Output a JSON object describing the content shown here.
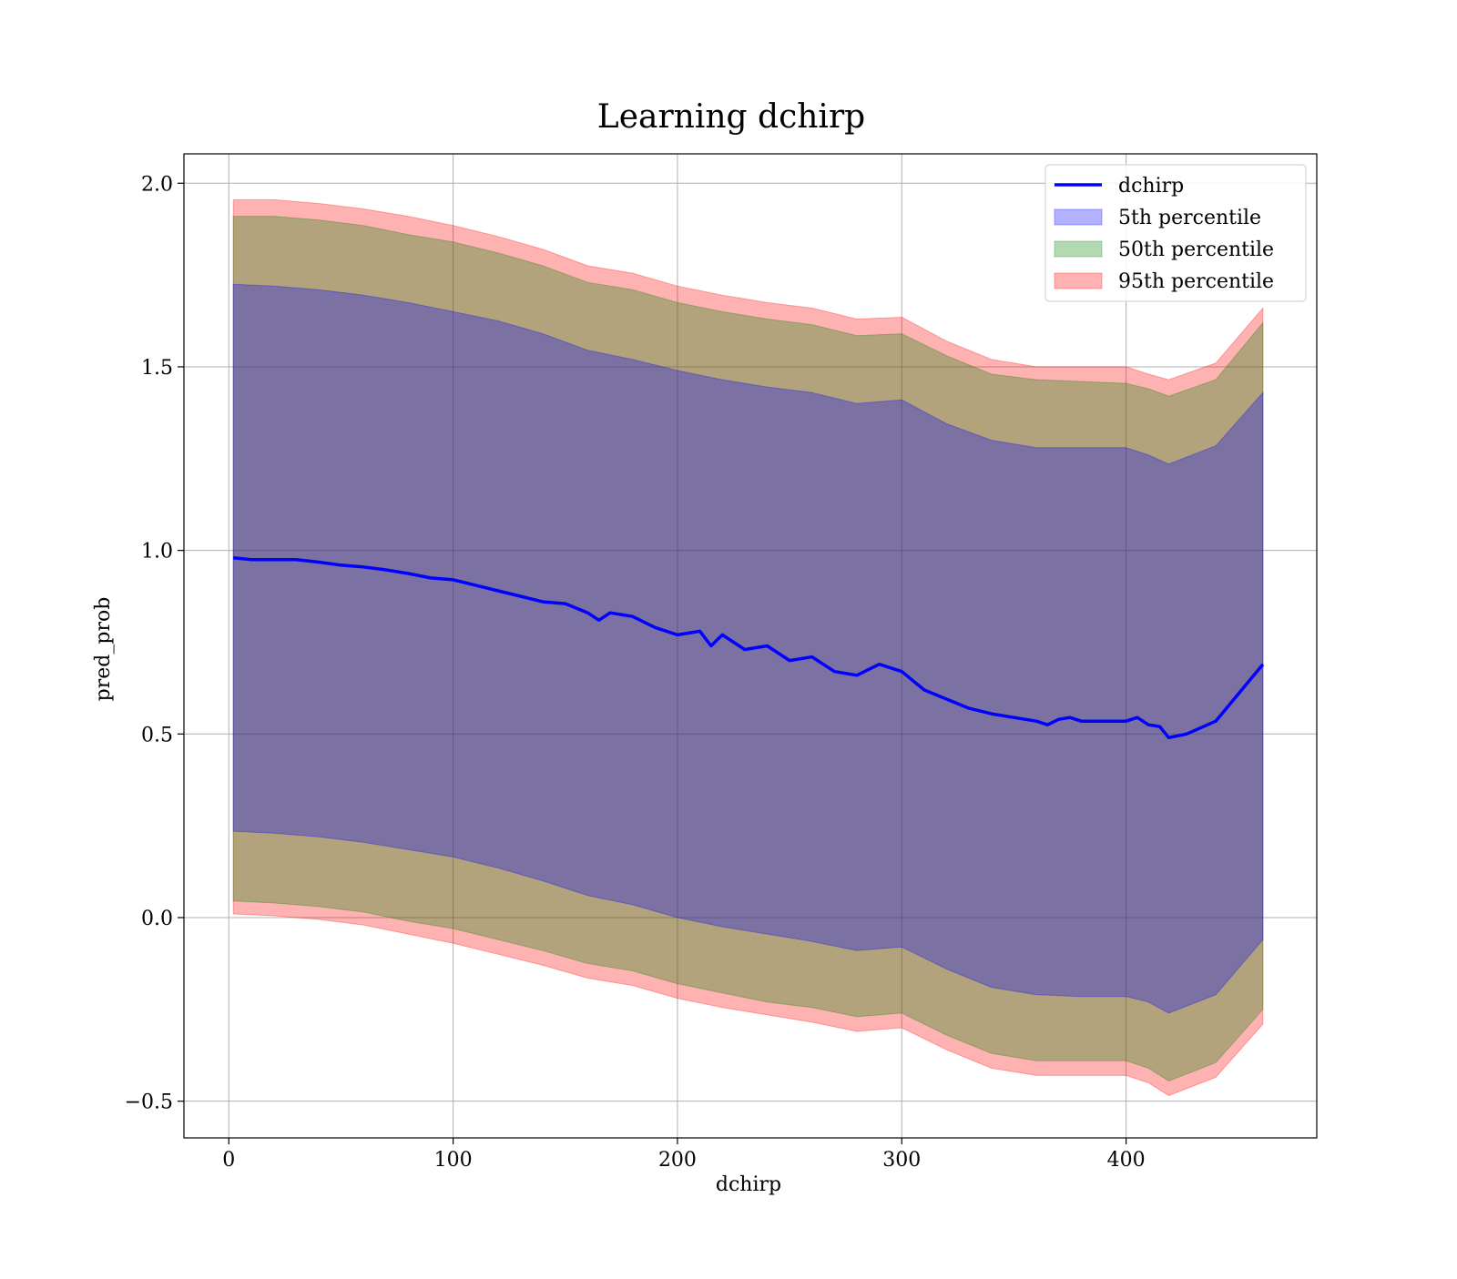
{
  "chart_data": {
    "type": "area",
    "title": "Learning dchirp",
    "xlabel": "dchirp",
    "ylabel": "pred_prob",
    "xlim": [
      -20,
      485
    ],
    "ylim": [
      -0.6,
      2.08
    ],
    "xticks": [
      0,
      100,
      200,
      300,
      400
    ],
    "yticks": [
      -0.5,
      0.0,
      0.5,
      1.0,
      1.5,
      2.0
    ],
    "xtick_labels": [
      "0",
      "100",
      "200",
      "300",
      "400"
    ],
    "ytick_labels": [
      "−0.5",
      "0.0",
      "0.5",
      "1.0",
      "1.5",
      "2.0"
    ],
    "grid": true,
    "legend_position": "top-right",
    "legend": [
      {
        "label": "dchirp",
        "kind": "line",
        "color": "#0000ff"
      },
      {
        "label": "5th percentile",
        "kind": "band",
        "color": "#0000ff"
      },
      {
        "label": "50th percentile",
        "kind": "band",
        "color": "#008000"
      },
      {
        "label": "95th percentile",
        "kind": "band",
        "color": "#ff0000"
      }
    ],
    "line": {
      "name": "dchirp",
      "color": "#0000ff",
      "x": [
        2,
        10,
        20,
        30,
        40,
        50,
        60,
        70,
        80,
        90,
        100,
        110,
        120,
        130,
        140,
        150,
        160,
        165,
        170,
        180,
        190,
        200,
        210,
        215,
        220,
        230,
        240,
        250,
        260,
        270,
        280,
        290,
        300,
        310,
        320,
        330,
        340,
        350,
        360,
        365,
        370,
        375,
        380,
        390,
        400,
        405,
        410,
        415,
        419,
        427,
        440,
        461
      ],
      "y": [
        0.98,
        0.975,
        0.975,
        0.975,
        0.968,
        0.96,
        0.955,
        0.947,
        0.937,
        0.925,
        0.92,
        0.905,
        0.89,
        0.875,
        0.86,
        0.855,
        0.83,
        0.81,
        0.83,
        0.82,
        0.79,
        0.77,
        0.78,
        0.74,
        0.77,
        0.73,
        0.74,
        0.7,
        0.71,
        0.67,
        0.66,
        0.69,
        0.67,
        0.62,
        0.595,
        0.57,
        0.555,
        0.545,
        0.535,
        0.525,
        0.54,
        0.545,
        0.535,
        0.535,
        0.535,
        0.545,
        0.525,
        0.52,
        0.49,
        0.5,
        0.535,
        0.69
      ]
    },
    "bands": [
      {
        "name": "95th percentile",
        "color": "#ff0000",
        "x": [
          2,
          20,
          40,
          60,
          80,
          100,
          120,
          140,
          160,
          180,
          200,
          220,
          240,
          260,
          280,
          300,
          320,
          340,
          360,
          380,
          400,
          410,
          419,
          440,
          461
        ],
        "upper": [
          1.955,
          1.955,
          1.945,
          1.93,
          1.91,
          1.885,
          1.855,
          1.82,
          1.775,
          1.755,
          1.72,
          1.695,
          1.675,
          1.66,
          1.63,
          1.635,
          1.57,
          1.52,
          1.5,
          1.5,
          1.5,
          1.48,
          1.465,
          1.51,
          1.66
        ],
        "lower": [
          0.01,
          0.005,
          -0.005,
          -0.02,
          -0.045,
          -0.07,
          -0.1,
          -0.13,
          -0.165,
          -0.185,
          -0.22,
          -0.245,
          -0.265,
          -0.285,
          -0.31,
          -0.3,
          -0.36,
          -0.41,
          -0.43,
          -0.43,
          -0.43,
          -0.45,
          -0.485,
          -0.435,
          -0.29
        ]
      },
      {
        "name": "50th percentile",
        "color": "#008000",
        "x": [
          2,
          20,
          40,
          60,
          80,
          100,
          120,
          140,
          160,
          180,
          200,
          220,
          240,
          260,
          280,
          300,
          320,
          340,
          360,
          380,
          400,
          410,
          419,
          440,
          461
        ],
        "upper": [
          1.91,
          1.91,
          1.9,
          1.885,
          1.86,
          1.84,
          1.81,
          1.775,
          1.73,
          1.71,
          1.675,
          1.65,
          1.63,
          1.615,
          1.585,
          1.59,
          1.53,
          1.48,
          1.465,
          1.46,
          1.455,
          1.44,
          1.42,
          1.465,
          1.62
        ],
        "lower": [
          0.045,
          0.04,
          0.03,
          0.015,
          -0.01,
          -0.03,
          -0.06,
          -0.09,
          -0.125,
          -0.145,
          -0.18,
          -0.205,
          -0.23,
          -0.245,
          -0.27,
          -0.26,
          -0.32,
          -0.37,
          -0.39,
          -0.39,
          -0.39,
          -0.41,
          -0.445,
          -0.395,
          -0.25
        ]
      },
      {
        "name": "5th percentile",
        "color": "#0000ff",
        "x": [
          2,
          20,
          40,
          60,
          80,
          100,
          120,
          140,
          160,
          180,
          200,
          220,
          240,
          260,
          280,
          300,
          320,
          340,
          360,
          380,
          400,
          410,
          419,
          440,
          461
        ],
        "upper": [
          1.725,
          1.72,
          1.71,
          1.695,
          1.675,
          1.65,
          1.625,
          1.59,
          1.545,
          1.52,
          1.49,
          1.465,
          1.445,
          1.43,
          1.4,
          1.41,
          1.345,
          1.3,
          1.28,
          1.28,
          1.28,
          1.26,
          1.235,
          1.285,
          1.43
        ],
        "lower": [
          0.235,
          0.23,
          0.22,
          0.205,
          0.185,
          0.165,
          0.135,
          0.1,
          0.06,
          0.035,
          0.0,
          -0.025,
          -0.045,
          -0.065,
          -0.09,
          -0.08,
          -0.14,
          -0.19,
          -0.21,
          -0.215,
          -0.215,
          -0.23,
          -0.26,
          -0.21,
          -0.06
        ]
      }
    ]
  }
}
